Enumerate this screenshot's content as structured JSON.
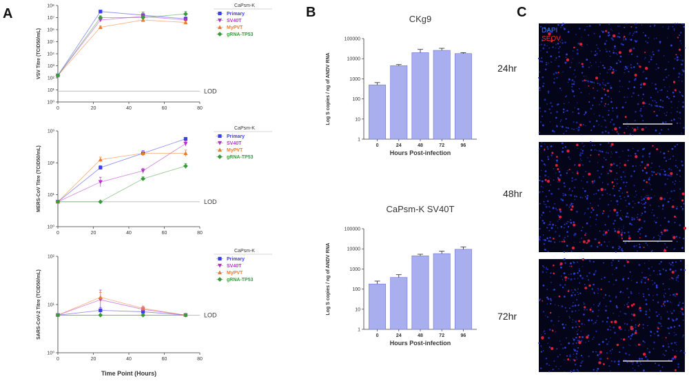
{
  "panels": {
    "a": "A",
    "b": "B",
    "c": "C"
  },
  "colors": {
    "primary": "#3b3bf0",
    "sv40t": "#b531c9",
    "mypvt": "#f07a2a",
    "grna": "#3a9a3a",
    "bar": "#a9aeef",
    "lod": "#aaaaaa"
  },
  "lod_label": "LOD",
  "legend": {
    "title": "CaPsm-K",
    "entries": [
      {
        "key": "primary",
        "label": "Primary"
      },
      {
        "key": "sv40t",
        "label": "SV40T"
      },
      {
        "key": "mypvt",
        "label": "MyPVT"
      },
      {
        "key": "grna",
        "label": "gRNA-TP53"
      }
    ]
  },
  "chart_data": [
    {
      "id": "vsv",
      "type": "line",
      "ylabel": "VSV Titre (TCID50/mL)",
      "xlabel": "",
      "log_y": true,
      "xlim": [
        0,
        80
      ],
      "ylim_exp": [
        0,
        8
      ],
      "x_ticks": [
        "0",
        "20",
        "40",
        "60",
        "80"
      ],
      "y_ticks": [
        "10⁰",
        "10¹",
        "10²",
        "10³",
        "10⁴",
        "10⁵",
        "10⁶",
        "10⁷",
        "10⁸"
      ],
      "lod_exp": 0.9,
      "x": [
        0,
        24,
        48,
        72
      ],
      "series": [
        {
          "key": "primary",
          "name": "Primary",
          "y_exp": [
            2.2,
            7.5,
            7.2,
            6.9
          ],
          "err": [
            0,
            0.1,
            0.25,
            0.15
          ]
        },
        {
          "key": "sv40t",
          "name": "SV40T",
          "y_exp": [
            2.2,
            6.8,
            7.1,
            6.8
          ],
          "err": [
            0,
            0.15,
            0.2,
            0.1
          ]
        },
        {
          "key": "mypvt",
          "name": "MyPVT",
          "y_exp": [
            2.2,
            6.2,
            6.8,
            6.6
          ],
          "err": [
            0,
            0.1,
            0.15,
            0.1
          ]
        },
        {
          "key": "grna",
          "name": "gRNA-TP53",
          "y_exp": [
            2.2,
            7.0,
            7.0,
            7.3
          ],
          "err": [
            0,
            0.15,
            0.15,
            0.2
          ]
        }
      ]
    },
    {
      "id": "mers",
      "type": "line",
      "ylabel": "MERS-CoV Titre (TCID50/mL)",
      "xlabel": "",
      "log_y": true,
      "xlim": [
        0,
        80
      ],
      "ylim_exp": [
        0,
        3
      ],
      "x_ticks": [
        "0",
        "20",
        "40",
        "60",
        "80"
      ],
      "y_ticks": [
        "10⁰",
        "10¹",
        "10²",
        "10³"
      ],
      "lod_exp": 0.78,
      "x": [
        0,
        24,
        48,
        72
      ],
      "series": [
        {
          "key": "primary",
          "name": "Primary",
          "y_exp": [
            0.78,
            1.85,
            2.3,
            2.75
          ],
          "err": [
            0,
            0.06,
            0.08,
            0.05
          ]
        },
        {
          "key": "sv40t",
          "name": "SV40T",
          "y_exp": [
            0.78,
            1.4,
            1.75,
            2.6
          ],
          "err": [
            0,
            0.15,
            0.08,
            0.08
          ]
        },
        {
          "key": "mypvt",
          "name": "MyPVT",
          "y_exp": [
            0.78,
            2.1,
            2.3,
            2.3
          ],
          "err": [
            0,
            0.08,
            0.05,
            0.1
          ]
        },
        {
          "key": "grna",
          "name": "gRNA-TP53",
          "y_exp": [
            0.78,
            0.78,
            1.5,
            1.9
          ],
          "err": [
            0,
            0,
            0.06,
            0.08
          ]
        }
      ]
    },
    {
      "id": "sars",
      "type": "line",
      "ylabel": "SARS-CoV-2 Titre (TCID50/mL)",
      "xlabel": "Time Point (Hours)",
      "log_y": true,
      "xlim": [
        0,
        80
      ],
      "ylim_exp": [
        0,
        2
      ],
      "x_ticks": [
        "0",
        "20",
        "40",
        "60",
        "80"
      ],
      "y_ticks": [
        "10⁰",
        "10¹",
        "10²"
      ],
      "lod_exp": 0.78,
      "x": [
        0,
        24,
        48,
        72
      ],
      "series": [
        {
          "key": "primary",
          "name": "Primary",
          "y_exp": [
            0.78,
            0.88,
            0.85,
            0.78
          ],
          "err": [
            0,
            0.06,
            0.08,
            0
          ]
        },
        {
          "key": "sv40t",
          "name": "SV40T",
          "y_exp": [
            0.78,
            1.1,
            0.9,
            0.78
          ],
          "err": [
            0,
            0.2,
            0.05,
            0
          ]
        },
        {
          "key": "mypvt",
          "name": "MyPVT",
          "y_exp": [
            0.78,
            1.15,
            0.92,
            0.78
          ],
          "err": [
            0,
            0.1,
            0.05,
            0
          ]
        },
        {
          "key": "grna",
          "name": "gRNA-TP53",
          "y_exp": [
            0.78,
            0.78,
            0.78,
            0.78
          ],
          "err": [
            0,
            0,
            0,
            0
          ]
        }
      ]
    },
    {
      "id": "ckg9",
      "type": "bar",
      "title": "CKg9",
      "ylabel": "Log S copies / ng of ANDV RNA",
      "xlabel": "Hours Post-infection",
      "log_y": true,
      "ylim_exp": [
        0,
        5
      ],
      "y_ticks": [
        "1",
        "10",
        "100",
        "1000",
        "10000",
        "100000"
      ],
      "categories": [
        "0",
        "24",
        "48",
        "72",
        "96"
      ],
      "values": [
        500,
        4500,
        20000,
        26000,
        18000
      ],
      "err": [
        150,
        600,
        9000,
        7000,
        2000
      ]
    },
    {
      "id": "capsm_sv40t",
      "type": "bar",
      "title": "CaPsm-K SV40T",
      "ylabel": "Log S copies / ng of ANDV RNA",
      "xlabel": "Hours Post-infection",
      "log_y": true,
      "ylim_exp": [
        0,
        5
      ],
      "y_ticks": [
        "1",
        "10",
        "100",
        "1000",
        "10000",
        "100000"
      ],
      "categories": [
        "0",
        "24",
        "48",
        "72",
        "96"
      ],
      "values": [
        180,
        380,
        4500,
        5800,
        9500
      ],
      "err": [
        70,
        140,
        900,
        1800,
        3000
      ]
    }
  ],
  "micrographs": {
    "legend": {
      "dapi": "DAPI",
      "seov": "SEOV"
    },
    "rows": [
      {
        "label": "24hr"
      },
      {
        "label": "48hr"
      },
      {
        "label": "72hr"
      }
    ]
  }
}
